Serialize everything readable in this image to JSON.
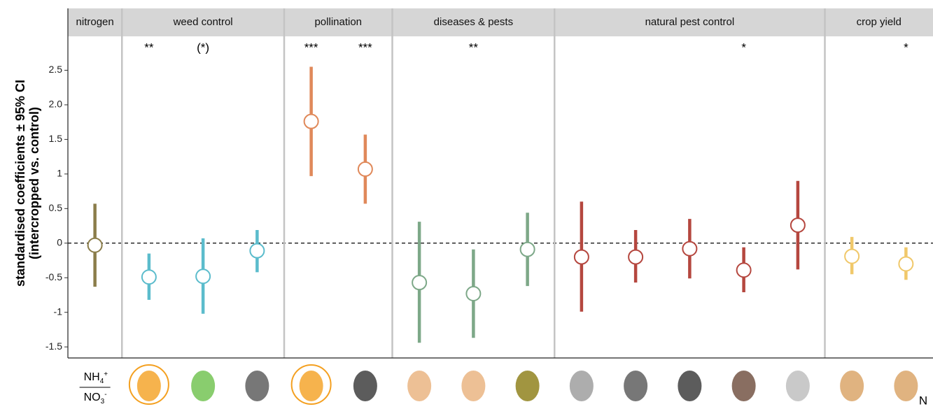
{
  "chart_data": {
    "type": "pointrange",
    "ylabel": [
      "standardised coefficients ± 95% CI",
      "(intercropped vs. control)"
    ],
    "ylim": [
      -1.66,
      2.99
    ],
    "yticks": [
      -1.5,
      -1,
      -0.5,
      0,
      0.5,
      1,
      1.5,
      {
        "value": 2,
        "label": "2.0"
      },
      2.5
    ],
    "hline": 0,
    "groups": [
      {
        "name": "nitrogen",
        "color": "#8b7d4a",
        "values": [
          -0.03
        ],
        "lower": [
          -0.63
        ],
        "upper": [
          0.57
        ],
        "significance": [
          null
        ]
      },
      {
        "name": "weed control",
        "color": "#5bbccc",
        "values": [
          -0.49,
          -0.48,
          -0.11
        ],
        "lower": [
          -0.82,
          -1.02,
          -0.42
        ],
        "upper": [
          -0.15,
          0.07,
          0.19
        ],
        "significance": [
          "**",
          "(*)",
          null
        ]
      },
      {
        "name": "pollination",
        "color": "#e0895a",
        "values": [
          1.76,
          1.07
        ],
        "lower": [
          0.97,
          0.57
        ],
        "upper": [
          2.55,
          1.57
        ],
        "significance": [
          "***",
          "***"
        ]
      },
      {
        "name": "diseases & pests",
        "color": "#7da888",
        "values": [
          -0.57,
          -0.73,
          -0.09
        ],
        "lower": [
          -1.44,
          -1.37,
          -0.62
        ],
        "upper": [
          0.31,
          -0.09,
          0.44
        ],
        "significance": [
          null,
          "**",
          null
        ]
      },
      {
        "name": "natural pest control",
        "color": "#b5473f",
        "values": [
          -0.2,
          -0.2,
          -0.08,
          -0.39,
          0.26
        ],
        "lower": [
          -0.99,
          -0.57,
          -0.51,
          -0.71,
          -0.38
        ],
        "upper": [
          0.6,
          0.19,
          0.35,
          -0.06,
          0.9
        ],
        "significance": [
          null,
          null,
          null,
          "*",
          null
        ]
      },
      {
        "name": "crop yield",
        "color": "#f0c86a",
        "values": [
          -0.19,
          -0.3
        ],
        "lower": [
          -0.45,
          -0.53
        ],
        "upper": [
          0.09,
          -0.06
        ],
        "significance": [
          null,
          "*"
        ]
      }
    ],
    "nitrogen_icon": {
      "numerator": "NH",
      "num_sub": "4",
      "num_sup": "+",
      "denominator": "NO",
      "den_sub": "3",
      "den_sup": "-"
    },
    "icon_note": "N"
  }
}
